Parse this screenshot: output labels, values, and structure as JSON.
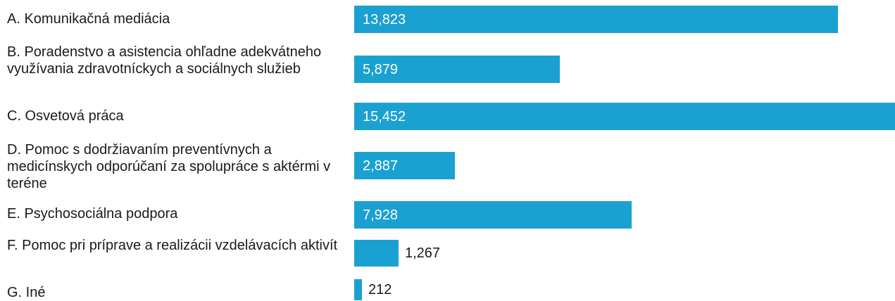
{
  "chart_data": {
    "type": "bar",
    "orientation": "horizontal",
    "categories": [
      "A. Komunikačná mediácia",
      "B. Poradenstvo a asistencia ohľadne adekvátneho využívania zdravotníckych a sociálnych služieb",
      "C. Osvetová práca",
      "D. Pomoc s dodržiavaním preventívnych a medicínskych odporúčaní za spolupráce s aktérmi v teréne",
      "E. Psychosociálna podpora",
      "F. Pomoc pri príprave a realizácii vzdelávacích aktivít",
      "G. Iné"
    ],
    "values": [
      13823,
      5879,
      15452,
      2887,
      7928,
      1267,
      212
    ],
    "value_labels": [
      "13,823",
      "5,879",
      "15,452",
      "2,887",
      "7,928",
      "1,267",
      "212"
    ],
    "xlim": [
      0,
      15452
    ],
    "grid": false,
    "legend": "none",
    "bar_color": "#1ba1d1"
  }
}
